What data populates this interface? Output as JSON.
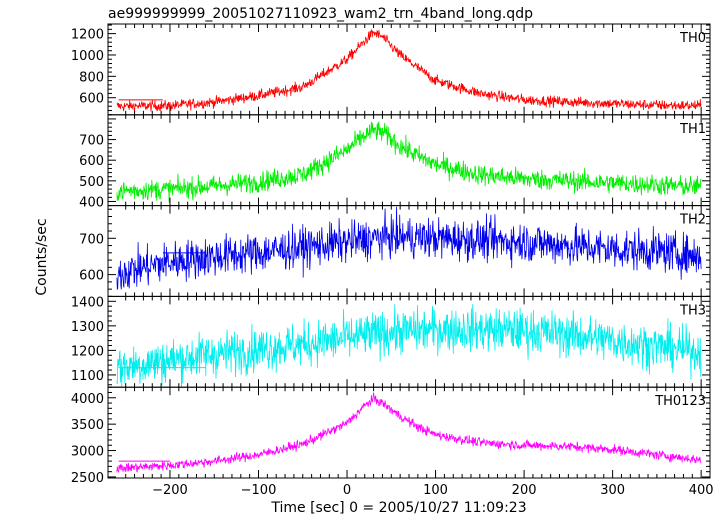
{
  "chart_data": {
    "type": "line",
    "title": "ae999999999_20051027110923_wam2_trn_4band_long.qdp",
    "xlabel": "Time [sec] 0 = 2005/10/27 11:09:23",
    "ylabel": "Counts/sec",
    "xlim": [
      -270,
      410
    ],
    "xticks": [
      -200,
      -100,
      0,
      100,
      200,
      300,
      400
    ],
    "xtick_labels": [
      "−200",
      "−100",
      "0",
      "100",
      "200",
      "300",
      "400"
    ],
    "series": [
      {
        "name": "TH0",
        "color": "#ff0000",
        "ylim": [
          440,
          1290
        ],
        "yticks": [
          600,
          800,
          1000,
          1200
        ],
        "ytick_labels": [
          "600",
          "800",
          "1000",
          "1200"
        ],
        "x": [
          -260,
          -200,
          -150,
          -100,
          -50,
          0,
          20,
          30,
          40,
          60,
          80,
          100,
          150,
          200,
          250,
          300,
          350,
          400
        ],
        "y": [
          520,
          525,
          560,
          620,
          700,
          960,
          1130,
          1210,
          1170,
          1000,
          880,
          760,
          640,
          580,
          560,
          545,
          530,
          525
        ],
        "noise": 25,
        "background_level": 580,
        "background_x": [
          -258,
          -208
        ]
      },
      {
        "name": "TH1",
        "color": "#00ee00",
        "ylim": [
          380,
          820
        ],
        "yticks": [
          400,
          500,
          600,
          700
        ],
        "ytick_labels": [
          "400",
          "500",
          "600",
          "700"
        ],
        "x": [
          -260,
          -200,
          -150,
          -100,
          -50,
          0,
          20,
          30,
          40,
          60,
          80,
          100,
          150,
          200,
          250,
          300,
          350,
          400
        ],
        "y": [
          450,
          460,
          475,
          495,
          530,
          650,
          720,
          745,
          735,
          670,
          620,
          580,
          530,
          510,
          500,
          490,
          480,
          470
        ],
        "noise": 25,
        "background_level": 0,
        "background_x": []
      },
      {
        "name": "TH2",
        "color": "#0000ee",
        "ylim": [
          540,
          790
        ],
        "yticks": [
          600,
          700
        ],
        "ytick_labels": [
          "600",
          "700"
        ],
        "x": [
          -260,
          -200,
          -150,
          -100,
          -50,
          0,
          50,
          100,
          150,
          200,
          250,
          300,
          350,
          400
        ],
        "y": [
          605,
          635,
          650,
          660,
          675,
          690,
          705,
          700,
          695,
          690,
          680,
          670,
          665,
          650
        ],
        "noise": 28,
        "background_level": 660,
        "background_x": [
          -208,
          -160
        ]
      },
      {
        "name": "TH3",
        "color": "#00eeee",
        "ylim": [
          1050,
          1420
        ],
        "yticks": [
          1100,
          1200,
          1300,
          1400
        ],
        "ytick_labels": [
          "1100",
          "1200",
          "1300",
          "1400"
        ],
        "x": [
          -260,
          -200,
          -150,
          -100,
          -50,
          0,
          50,
          100,
          150,
          200,
          250,
          300,
          350,
          400
        ],
        "y": [
          1130,
          1160,
          1185,
          1205,
          1225,
          1250,
          1275,
          1285,
          1285,
          1280,
          1265,
          1240,
          1215,
          1195
        ],
        "noise": 45,
        "background_level": 1130,
        "background_x": [
          -258,
          -160
        ]
      },
      {
        "name": "TH0123",
        "color": "#ff00ff",
        "ylim": [
          2480,
          4200
        ],
        "yticks": [
          2500,
          3000,
          3500,
          4000
        ],
        "ytick_labels": [
          "2500",
          "3000",
          "3500",
          "4000"
        ],
        "x": [
          -260,
          -200,
          -150,
          -100,
          -50,
          0,
          20,
          30,
          40,
          60,
          80,
          100,
          150,
          200,
          250,
          300,
          350,
          400
        ],
        "y": [
          2660,
          2720,
          2800,
          2920,
          3120,
          3520,
          3850,
          3980,
          3900,
          3650,
          3450,
          3300,
          3150,
          3100,
          3080,
          3020,
          2920,
          2820
        ],
        "noise": 45,
        "background_level": 2800,
        "background_x": [
          -258,
          -200
        ]
      }
    ]
  }
}
